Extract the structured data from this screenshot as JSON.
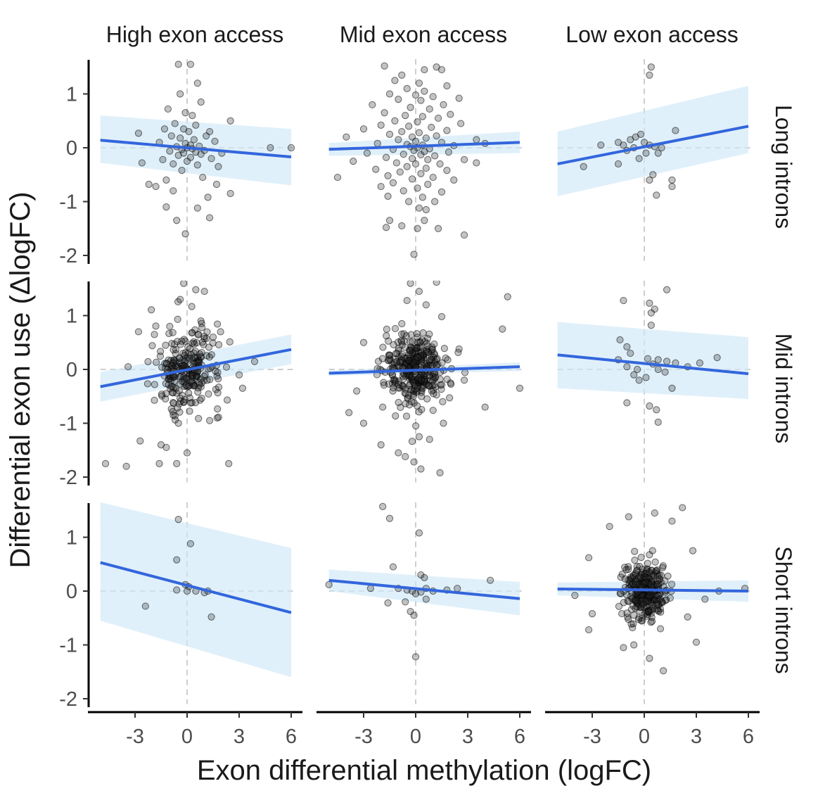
{
  "chart_data": {
    "type": "scatter",
    "xlabel": "Exon differential methylation (logFC)",
    "ylabel": "Differential exon use (ΔlogFC)",
    "xlim": [
      -5,
      6.5
    ],
    "ylim": [
      -2.1,
      1.65
    ],
    "xticks": [
      -3,
      0,
      3,
      6
    ],
    "xtick_labels": [
      "-3",
      "0",
      "3",
      "6"
    ],
    "yticks": [
      1,
      0,
      -1,
      -2
    ],
    "ytick_labels": [
      "1",
      "0",
      "-1",
      "-2"
    ],
    "col_facets": [
      "High exon access",
      "Mid exon access",
      "Low exon access"
    ],
    "row_facets": [
      "Long introns",
      "Mid introns",
      "Short introns"
    ],
    "reference_lines": {
      "x": 0,
      "y": 0
    },
    "panels": [
      {
        "row": "Long introns",
        "col": "High exon access",
        "fit": {
          "x": [
            -5,
            6
          ],
          "y": [
            0.14,
            -0.17
          ]
        },
        "ci_lower": [
          -0.28,
          -0.7
        ],
        "ci_upper": [
          0.6,
          0.35
        ],
        "points": [
          [
            -0.5,
            1.55
          ],
          [
            0.2,
            1.55
          ],
          [
            0.6,
            1.2
          ],
          [
            -0.4,
            1.0
          ],
          [
            0.8,
            0.85
          ],
          [
            -1.1,
            0.72
          ],
          [
            -0.1,
            0.65
          ],
          [
            0.3,
            0.6
          ],
          [
            -0.7,
            0.45
          ],
          [
            0.5,
            0.42
          ],
          [
            -1.3,
            0.35
          ],
          [
            1.3,
            0.3
          ],
          [
            2.5,
            0.5
          ],
          [
            -0.2,
            0.35
          ],
          [
            0.1,
            0.3
          ],
          [
            -2.8,
            0.27
          ],
          [
            -0.9,
            0.22
          ],
          [
            1.1,
            0.22
          ],
          [
            -0.4,
            0.18
          ],
          [
            0.4,
            0.15
          ],
          [
            1.6,
            0.12
          ],
          [
            -1.6,
            0.1
          ],
          [
            -0.1,
            0.08
          ],
          [
            0.2,
            0.05
          ],
          [
            0.7,
            0.03
          ],
          [
            -0.6,
            0.02
          ],
          [
            0.0,
            0.0
          ],
          [
            0.3,
            -0.02
          ],
          [
            -0.3,
            -0.03
          ],
          [
            1.0,
            -0.05
          ],
          [
            -1.0,
            -0.06
          ],
          [
            0.5,
            -0.08
          ],
          [
            -0.2,
            -0.1
          ],
          [
            2.0,
            -0.1
          ],
          [
            0.8,
            -0.12
          ],
          [
            -0.5,
            -0.14
          ],
          [
            0.2,
            -0.18
          ],
          [
            1.4,
            -0.2
          ],
          [
            -1.4,
            -0.22
          ],
          [
            -2.6,
            -0.28
          ],
          [
            0.0,
            -0.25
          ],
          [
            -0.8,
            -0.3
          ],
          [
            0.6,
            -0.32
          ],
          [
            1.8,
            -0.35
          ],
          [
            -0.3,
            -0.42
          ],
          [
            0.9,
            -0.55
          ],
          [
            -1.2,
            -0.6
          ],
          [
            -2.2,
            -0.68
          ],
          [
            -1.8,
            -0.72
          ],
          [
            1.7,
            -0.68
          ],
          [
            2.5,
            -0.85
          ],
          [
            -0.8,
            -0.8
          ],
          [
            1.2,
            -0.92
          ],
          [
            -1.2,
            -1.1
          ],
          [
            0.6,
            -1.12
          ],
          [
            1.3,
            -1.3
          ],
          [
            -0.6,
            -1.35
          ],
          [
            -0.1,
            -1.6
          ],
          [
            6.0,
            0.0
          ],
          [
            4.8,
            0.0
          ]
        ]
      },
      {
        "row": "Long introns",
        "col": "Mid exon access",
        "fit": {
          "x": [
            -5,
            6
          ],
          "y": [
            -0.03,
            0.1
          ]
        },
        "ci_lower": [
          -0.15,
          -0.1
        ],
        "ci_upper": [
          0.09,
          0.3
        ],
        "points": [
          [
            -1.8,
            1.52
          ],
          [
            -0.8,
            1.35
          ],
          [
            0.5,
            1.45
          ],
          [
            1.2,
            1.5
          ],
          [
            1.5,
            1.45
          ],
          [
            -1.2,
            1.25
          ],
          [
            0.2,
            1.2
          ],
          [
            1.8,
            1.15
          ],
          [
            -0.5,
            1.1
          ],
          [
            0.5,
            1.05
          ],
          [
            -1.5,
            1.0
          ],
          [
            0.0,
            0.98
          ],
          [
            1.0,
            0.95
          ],
          [
            2.5,
            0.92
          ],
          [
            -1.0,
            0.9
          ],
          [
            0.3,
            0.88
          ],
          [
            -2.5,
            0.8
          ],
          [
            1.6,
            0.8
          ],
          [
            -0.3,
            0.75
          ],
          [
            0.8,
            0.72
          ],
          [
            -1.8,
            0.65
          ],
          [
            2.0,
            0.62
          ],
          [
            -0.6,
            0.6
          ],
          [
            0.4,
            0.58
          ],
          [
            1.3,
            0.55
          ],
          [
            -1.2,
            0.5
          ],
          [
            0.1,
            0.48
          ],
          [
            2.6,
            0.45
          ],
          [
            -2.0,
            0.42
          ],
          [
            -0.4,
            0.4
          ],
          [
            0.9,
            0.38
          ],
          [
            -3.0,
            0.35
          ],
          [
            1.8,
            0.32
          ],
          [
            -0.8,
            0.3
          ],
          [
            0.2,
            0.28
          ],
          [
            -1.5,
            0.25
          ],
          [
            1.2,
            0.22
          ],
          [
            -0.2,
            0.2
          ],
          [
            0.6,
            0.18
          ],
          [
            -4.0,
            0.2
          ],
          [
            3.5,
            0.15
          ],
          [
            -1.0,
            0.15
          ],
          [
            0.0,
            0.12
          ],
          [
            1.5,
            0.1
          ],
          [
            -2.2,
            0.08
          ],
          [
            -0.5,
            0.06
          ],
          [
            0.4,
            0.05
          ],
          [
            2.2,
            0.04
          ],
          [
            -0.3,
            0.02
          ],
          [
            0.1,
            0.0
          ],
          [
            0.8,
            -0.02
          ],
          [
            -1.3,
            -0.03
          ],
          [
            -0.1,
            -0.05
          ],
          [
            0.5,
            -0.07
          ],
          [
            1.9,
            -0.08
          ],
          [
            -2.8,
            -0.1
          ],
          [
            -0.7,
            -0.12
          ],
          [
            0.3,
            -0.13
          ],
          [
            1.1,
            -0.15
          ],
          [
            -1.7,
            -0.18
          ],
          [
            -0.2,
            -0.2
          ],
          [
            0.7,
            -0.22
          ],
          [
            2.8,
            -0.22
          ],
          [
            -3.6,
            -0.25
          ],
          [
            -1.1,
            -0.28
          ],
          [
            0.0,
            -0.3
          ],
          [
            1.4,
            -0.3
          ],
          [
            -0.5,
            -0.35
          ],
          [
            0.6,
            -0.38
          ],
          [
            -2.3,
            -0.4
          ],
          [
            1.8,
            -0.42
          ],
          [
            -0.9,
            -0.45
          ],
          [
            0.3,
            -0.48
          ],
          [
            -1.6,
            -0.52
          ],
          [
            1.0,
            -0.55
          ],
          [
            -4.5,
            -0.55
          ],
          [
            -0.2,
            -0.58
          ],
          [
            2.2,
            -0.6
          ],
          [
            -1.3,
            -0.65
          ],
          [
            0.7,
            -0.68
          ],
          [
            -2.0,
            -0.72
          ],
          [
            0.1,
            -0.75
          ],
          [
            -0.7,
            -0.8
          ],
          [
            1.5,
            -0.82
          ],
          [
            -1.6,
            -0.9
          ],
          [
            0.4,
            -0.92
          ],
          [
            -0.4,
            -1.0
          ],
          [
            1.1,
            -1.0
          ],
          [
            0.2,
            -1.12
          ],
          [
            0.6,
            -1.15
          ],
          [
            -1.5,
            -1.35
          ],
          [
            -0.8,
            -1.45
          ],
          [
            -1.7,
            -1.48
          ],
          [
            0.5,
            -1.35
          ],
          [
            0.1,
            -1.5
          ],
          [
            1.3,
            -1.5
          ],
          [
            2.8,
            -1.62
          ],
          [
            -0.1,
            -1.98
          ],
          [
            3.5,
            -0.28
          ],
          [
            4.0,
            0.08
          ]
        ]
      },
      {
        "row": "Long introns",
        "col": "Low exon access",
        "fit": {
          "x": [
            -5,
            6
          ],
          "y": [
            -0.3,
            0.4
          ]
        },
        "ci_lower": [
          -0.9,
          -0.1
        ],
        "ci_upper": [
          0.3,
          1.15
        ],
        "points": [
          [
            0.4,
            1.5
          ],
          [
            0.3,
            1.35
          ],
          [
            1.8,
            0.32
          ],
          [
            -2.5,
            0.05
          ],
          [
            -1.5,
            0.1
          ],
          [
            -1.2,
            0.05
          ],
          [
            -0.8,
            0.15
          ],
          [
            -0.5,
            0.2
          ],
          [
            -0.2,
            0.25
          ],
          [
            0.0,
            0.1
          ],
          [
            0.3,
            0.05
          ],
          [
            0.6,
            0.02
          ],
          [
            1.0,
            0.0
          ],
          [
            -0.6,
            0.0
          ],
          [
            -1.0,
            -0.05
          ],
          [
            0.1,
            -0.1
          ],
          [
            0.8,
            -0.1
          ],
          [
            -0.3,
            -0.2
          ],
          [
            -1.5,
            -0.3
          ],
          [
            -3.5,
            -0.35
          ],
          [
            0.5,
            -0.5
          ],
          [
            0.3,
            -0.6
          ],
          [
            1.6,
            -0.6
          ],
          [
            1.6,
            -0.72
          ],
          [
            0.7,
            -0.88
          ]
        ]
      },
      {
        "row": "Mid introns",
        "col": "High exon access",
        "fit": {
          "x": [
            -5,
            6
          ],
          "y": [
            -0.32,
            0.37
          ]
        },
        "ci_lower": [
          -0.6,
          0.1
        ],
        "ci_upper": [
          -0.05,
          0.65
        ]
      },
      {
        "row": "Mid introns",
        "col": "Mid exon access",
        "fit": {
          "x": [
            -5,
            6
          ],
          "y": [
            -0.07,
            0.05
          ]
        },
        "ci_lower": [
          -0.12,
          -0.03
        ],
        "ci_upper": [
          -0.02,
          0.13
        ]
      },
      {
        "row": "Mid introns",
        "col": "Low exon access",
        "fit": {
          "x": [
            -5,
            6
          ],
          "y": [
            0.27,
            -0.08
          ]
        },
        "ci_lower": [
          -0.35,
          -0.55
        ],
        "ci_upper": [
          0.88,
          0.6
        ]
      },
      {
        "row": "Short introns",
        "col": "High exon access",
        "fit": {
          "x": [
            -5,
            6
          ],
          "y": [
            0.53,
            -0.4
          ]
        },
        "ci_lower": [
          -0.55,
          -1.6
        ],
        "ci_upper": [
          1.65,
          0.8
        ]
      },
      {
        "row": "Short introns",
        "col": "Mid exon access",
        "fit": {
          "x": [
            -5,
            6
          ],
          "y": [
            0.2,
            -0.14
          ]
        },
        "ci_lower": [
          0.0,
          -0.45
        ],
        "ci_upper": [
          0.4,
          0.17
        ]
      },
      {
        "row": "Short introns",
        "col": "Low exon access",
        "fit": {
          "x": [
            -5,
            6
          ],
          "y": [
            0.04,
            0.0
          ]
        },
        "ci_lower": [
          -0.08,
          -0.2
        ],
        "ci_upper": [
          0.16,
          0.2
        ]
      }
    ]
  }
}
